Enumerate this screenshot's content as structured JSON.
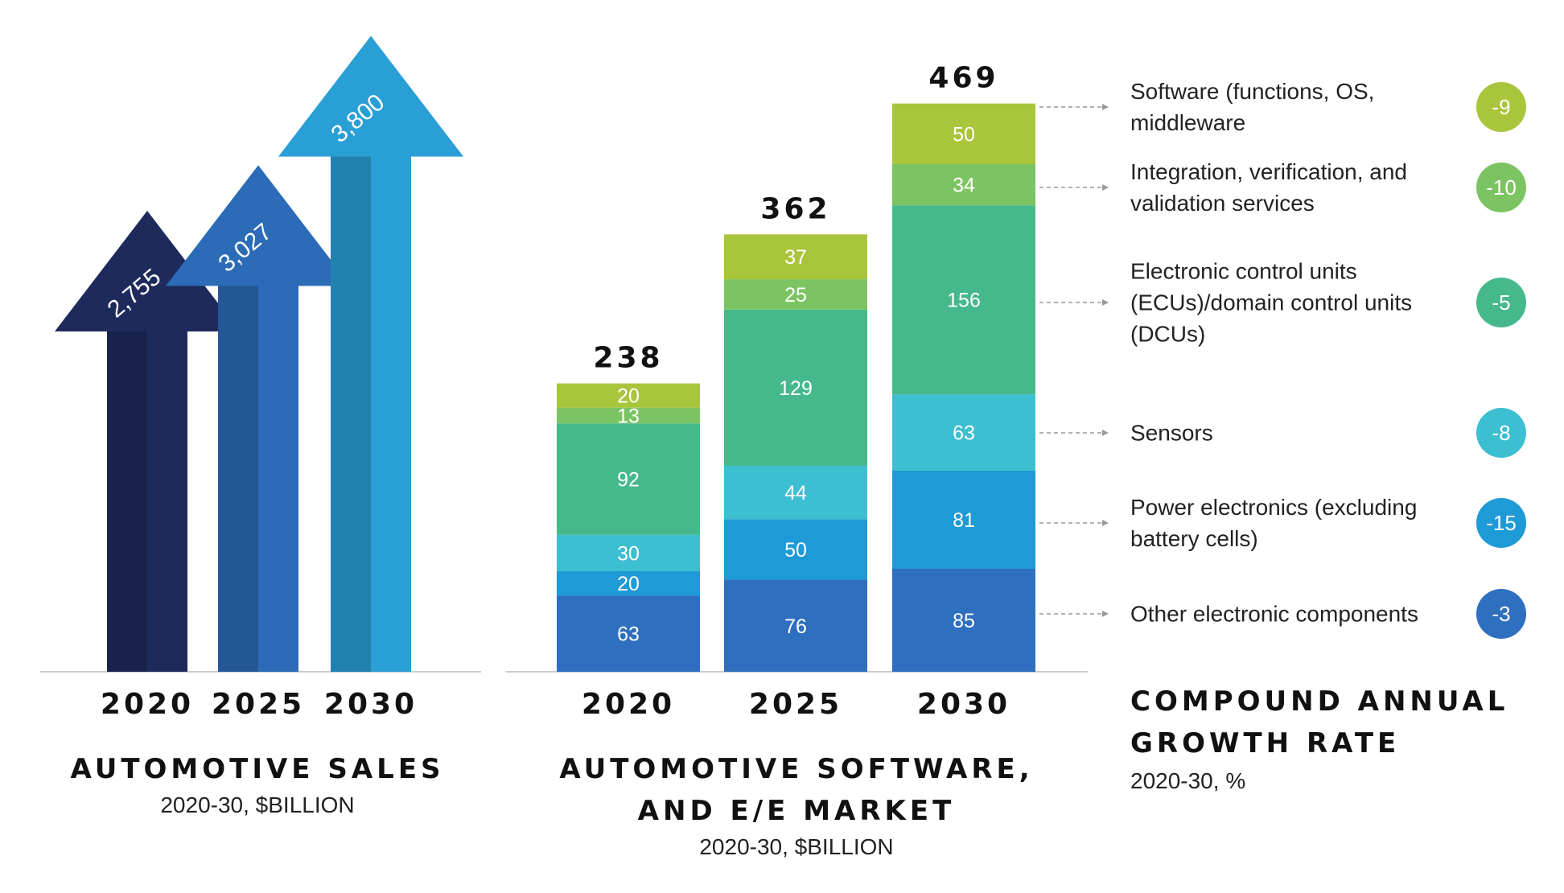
{
  "chart_data": [
    {
      "type": "arrow",
      "title": "AUTOMOTIVE SALES",
      "subtitle": "2020-30, $BILLION",
      "categories": [
        "2020",
        "2025",
        "2030"
      ],
      "values": [
        2755,
        3027,
        3800
      ],
      "value_labels": [
        "2,755",
        "3,027",
        "3,800"
      ],
      "colors": [
        "#1f2a5c",
        "#2b6bb7",
        "#2a9fd6"
      ]
    },
    {
      "type": "stacked-bar",
      "title": "AUTOMOTIVE SOFTWARE, AND E/E MARKET",
      "subtitle": "2020-30, $BILLION",
      "categories": [
        "2020",
        "2025",
        "2030"
      ],
      "totals": [
        238,
        362,
        469
      ],
      "cagr_title": "COMPOUND ANNUAL GROWTH RATE",
      "cagr_subtitle": "2020-30, %",
      "series": [
        {
          "name": "Other electronic components",
          "color": "#2f6fbf",
          "values": [
            63,
            76,
            85
          ],
          "cagr": -3
        },
        {
          "name": "Power electronics (excluding battery cells)",
          "color": "#1e9ad6",
          "values": [
            20,
            50,
            81
          ],
          "cagr": -15
        },
        {
          "name": "Sensors",
          "color": "#3dbfd2",
          "values": [
            30,
            44,
            63
          ],
          "cagr": -8
        },
        {
          "name": "Electronic control units (ECUs)/domain control units (DCUs)",
          "color": "#46b98c",
          "values": [
            92,
            129,
            156
          ],
          "cagr": -5
        },
        {
          "name": "Integration, verification, and validation services",
          "color": "#7cc463",
          "values": [
            13,
            25,
            34
          ],
          "cagr": -10
        },
        {
          "name": "Software (functions, OS, middleware",
          "color": "#a9c53b",
          "values": [
            20,
            37,
            50
          ],
          "cagr": -9
        }
      ]
    }
  ]
}
